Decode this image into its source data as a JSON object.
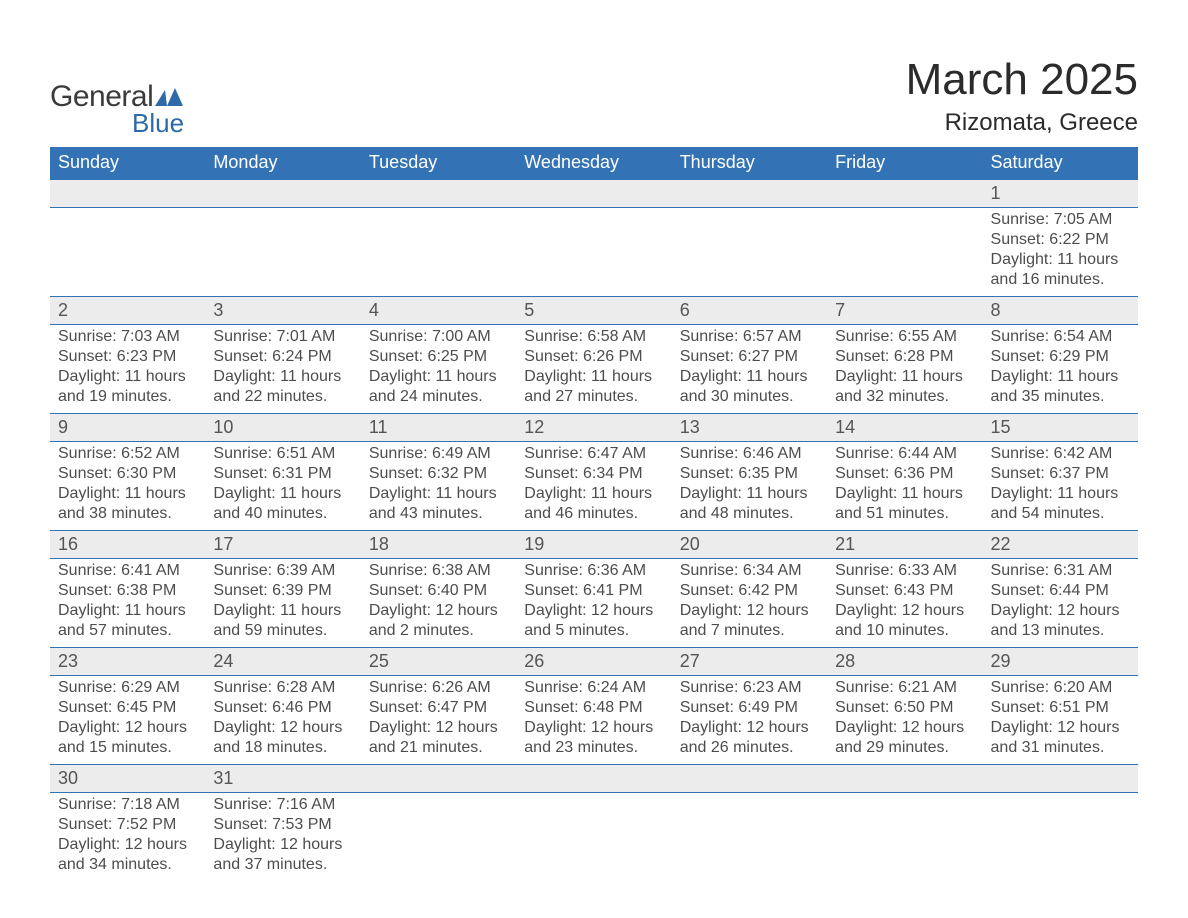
{
  "brand": {
    "word1": "General",
    "word2": "Blue",
    "mark_color": "#2f6aa8",
    "text_color_dark": "#3b3b3b",
    "text_color_blue": "#2f6aa8"
  },
  "title": {
    "month": "March 2025",
    "location": "Rizomata, Greece"
  },
  "style": {
    "header_bg": "#3373b5",
    "header_text": "#ffffff",
    "daynum_bg": "#ececec",
    "row_divider": "#3373b5",
    "body_text": "#4d4d4d",
    "page_bg": "#ffffff",
    "month_title_fontsize": 44,
    "location_fontsize": 24,
    "weekday_fontsize": 18,
    "daynum_fontsize": 18,
    "info_fontsize": 16
  },
  "weekdays": [
    "Sunday",
    "Monday",
    "Tuesday",
    "Wednesday",
    "Thursday",
    "Friday",
    "Saturday"
  ],
  "weeks": [
    [
      null,
      null,
      null,
      null,
      null,
      null,
      {
        "n": "1",
        "sunrise": "7:05 AM",
        "sunset": "6:22 PM",
        "daylight1": "11 hours",
        "daylight2": "and 16 minutes."
      }
    ],
    [
      {
        "n": "2",
        "sunrise": "7:03 AM",
        "sunset": "6:23 PM",
        "daylight1": "11 hours",
        "daylight2": "and 19 minutes."
      },
      {
        "n": "3",
        "sunrise": "7:01 AM",
        "sunset": "6:24 PM",
        "daylight1": "11 hours",
        "daylight2": "and 22 minutes."
      },
      {
        "n": "4",
        "sunrise": "7:00 AM",
        "sunset": "6:25 PM",
        "daylight1": "11 hours",
        "daylight2": "and 24 minutes."
      },
      {
        "n": "5",
        "sunrise": "6:58 AM",
        "sunset": "6:26 PM",
        "daylight1": "11 hours",
        "daylight2": "and 27 minutes."
      },
      {
        "n": "6",
        "sunrise": "6:57 AM",
        "sunset": "6:27 PM",
        "daylight1": "11 hours",
        "daylight2": "and 30 minutes."
      },
      {
        "n": "7",
        "sunrise": "6:55 AM",
        "sunset": "6:28 PM",
        "daylight1": "11 hours",
        "daylight2": "and 32 minutes."
      },
      {
        "n": "8",
        "sunrise": "6:54 AM",
        "sunset": "6:29 PM",
        "daylight1": "11 hours",
        "daylight2": "and 35 minutes."
      }
    ],
    [
      {
        "n": "9",
        "sunrise": "6:52 AM",
        "sunset": "6:30 PM",
        "daylight1": "11 hours",
        "daylight2": "and 38 minutes."
      },
      {
        "n": "10",
        "sunrise": "6:51 AM",
        "sunset": "6:31 PM",
        "daylight1": "11 hours",
        "daylight2": "and 40 minutes."
      },
      {
        "n": "11",
        "sunrise": "6:49 AM",
        "sunset": "6:32 PM",
        "daylight1": "11 hours",
        "daylight2": "and 43 minutes."
      },
      {
        "n": "12",
        "sunrise": "6:47 AM",
        "sunset": "6:34 PM",
        "daylight1": "11 hours",
        "daylight2": "and 46 minutes."
      },
      {
        "n": "13",
        "sunrise": "6:46 AM",
        "sunset": "6:35 PM",
        "daylight1": "11 hours",
        "daylight2": "and 48 minutes."
      },
      {
        "n": "14",
        "sunrise": "6:44 AM",
        "sunset": "6:36 PM",
        "daylight1": "11 hours",
        "daylight2": "and 51 minutes."
      },
      {
        "n": "15",
        "sunrise": "6:42 AM",
        "sunset": "6:37 PM",
        "daylight1": "11 hours",
        "daylight2": "and 54 minutes."
      }
    ],
    [
      {
        "n": "16",
        "sunrise": "6:41 AM",
        "sunset": "6:38 PM",
        "daylight1": "11 hours",
        "daylight2": "and 57 minutes."
      },
      {
        "n": "17",
        "sunrise": "6:39 AM",
        "sunset": "6:39 PM",
        "daylight1": "11 hours",
        "daylight2": "and 59 minutes."
      },
      {
        "n": "18",
        "sunrise": "6:38 AM",
        "sunset": "6:40 PM",
        "daylight1": "12 hours",
        "daylight2": "and 2 minutes."
      },
      {
        "n": "19",
        "sunrise": "6:36 AM",
        "sunset": "6:41 PM",
        "daylight1": "12 hours",
        "daylight2": "and 5 minutes."
      },
      {
        "n": "20",
        "sunrise": "6:34 AM",
        "sunset": "6:42 PM",
        "daylight1": "12 hours",
        "daylight2": "and 7 minutes."
      },
      {
        "n": "21",
        "sunrise": "6:33 AM",
        "sunset": "6:43 PM",
        "daylight1": "12 hours",
        "daylight2": "and 10 minutes."
      },
      {
        "n": "22",
        "sunrise": "6:31 AM",
        "sunset": "6:44 PM",
        "daylight1": "12 hours",
        "daylight2": "and 13 minutes."
      }
    ],
    [
      {
        "n": "23",
        "sunrise": "6:29 AM",
        "sunset": "6:45 PM",
        "daylight1": "12 hours",
        "daylight2": "and 15 minutes."
      },
      {
        "n": "24",
        "sunrise": "6:28 AM",
        "sunset": "6:46 PM",
        "daylight1": "12 hours",
        "daylight2": "and 18 minutes."
      },
      {
        "n": "25",
        "sunrise": "6:26 AM",
        "sunset": "6:47 PM",
        "daylight1": "12 hours",
        "daylight2": "and 21 minutes."
      },
      {
        "n": "26",
        "sunrise": "6:24 AM",
        "sunset": "6:48 PM",
        "daylight1": "12 hours",
        "daylight2": "and 23 minutes."
      },
      {
        "n": "27",
        "sunrise": "6:23 AM",
        "sunset": "6:49 PM",
        "daylight1": "12 hours",
        "daylight2": "and 26 minutes."
      },
      {
        "n": "28",
        "sunrise": "6:21 AM",
        "sunset": "6:50 PM",
        "daylight1": "12 hours",
        "daylight2": "and 29 minutes."
      },
      {
        "n": "29",
        "sunrise": "6:20 AM",
        "sunset": "6:51 PM",
        "daylight1": "12 hours",
        "daylight2": "and 31 minutes."
      }
    ],
    [
      {
        "n": "30",
        "sunrise": "7:18 AM",
        "sunset": "7:52 PM",
        "daylight1": "12 hours",
        "daylight2": "and 34 minutes."
      },
      {
        "n": "31",
        "sunrise": "7:16 AM",
        "sunset": "7:53 PM",
        "daylight1": "12 hours",
        "daylight2": "and 37 minutes."
      },
      null,
      null,
      null,
      null,
      null
    ]
  ],
  "labels": {
    "sunrise_prefix": "Sunrise: ",
    "sunset_prefix": "Sunset: ",
    "daylight_prefix": "Daylight: "
  }
}
